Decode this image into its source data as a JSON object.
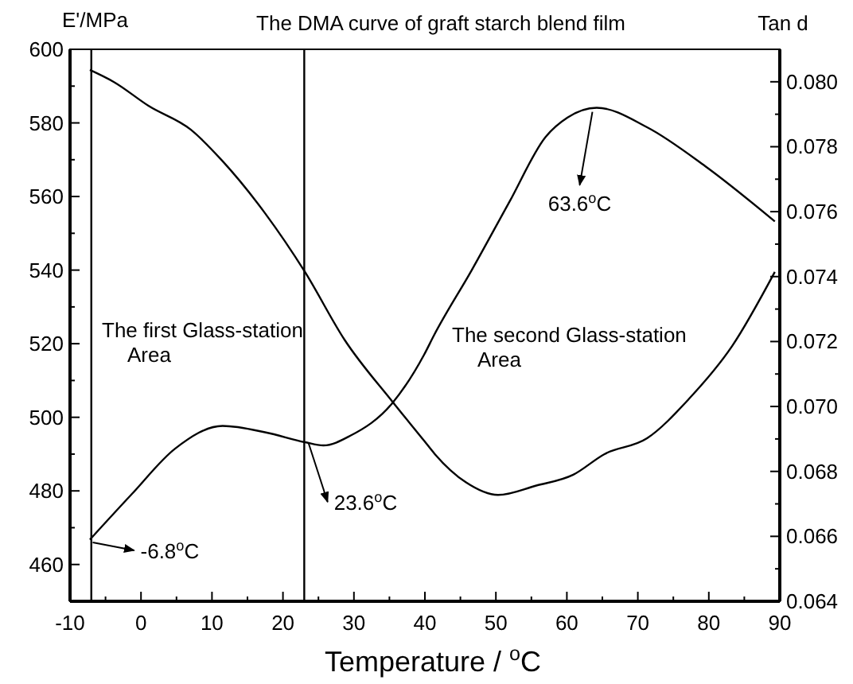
{
  "chart_data": {
    "type": "line",
    "title": "The DMA curve of graft starch blend film",
    "xlabel": "Temperature / $^{o}$C",
    "ylabel": "E'/MPa",
    "y2label": "Tan d",
    "series": [
      {
        "color": "#000000",
        "x": [
          -7.2,
          -3.8,
          1.1,
          7.0,
          11.5,
          17.5,
          23.1,
          28.7,
          35.4,
          39.9,
          41.4,
          45.8,
          50.3,
          55.6,
          60.9,
          65.3,
          71.3,
          77.2,
          83.3,
          89.3
        ],
        "values": [
          594.4,
          591.1,
          584.6,
          578.2,
          569.6,
          555.4,
          539.5,
          521,
          504.3,
          493.6,
          490,
          482.3,
          478.9,
          481.4,
          484.4,
          490,
          494.3,
          505,
          519.4,
          539.5
        ]
      },
      {
        "color": "#000000",
        "axis": "y2",
        "x": [
          -7.2,
          -1.3,
          4.8,
          11.5,
          17.6,
          23.1,
          25.7,
          29.5,
          35.4,
          39.9,
          41.3,
          46.6,
          51.9,
          57,
          60.1,
          64.2,
          71.3,
          79.5,
          89.3
        ],
        "values": [
          0.0659,
          0.0673,
          0.0687,
          0.0694,
          0.0692,
          0.0689,
          0.0688,
          0.0691,
          0.0701,
          0.0716,
          0.0722,
          0.0742,
          0.0763,
          0.0783,
          0.0789,
          0.0792,
          0.0786,
          0.0774,
          0.0757
        ]
      }
    ],
    "xlim": [
      -10,
      90
    ],
    "xticks": [
      -10,
      {
        "value": -5,
        "label": null
      },
      0,
      {
        "value": 5,
        "label": null
      },
      10,
      {
        "value": 15,
        "label": null
      },
      20,
      {
        "value": 25,
        "label": null
      },
      30,
      {
        "value": 35,
        "label": null
      },
      40,
      {
        "value": 45,
        "label": null
      },
      50,
      {
        "value": 55,
        "label": null
      },
      60,
      {
        "value": 65,
        "label": null
      },
      70,
      {
        "value": 75,
        "label": null
      },
      80,
      {
        "value": 85,
        "label": null
      },
      90
    ],
    "ylim": [
      450,
      600
    ],
    "yticks": [
      460,
      {
        "value": 470,
        "label": null
      },
      480,
      {
        "value": 490,
        "label": null
      },
      500,
      {
        "value": 510,
        "label": null
      },
      520,
      {
        "value": 530,
        "label": null
      },
      540,
      {
        "value": 550,
        "label": null
      },
      560,
      {
        "value": 570,
        "label": null
      },
      580,
      {
        "value": 590,
        "label": null
      },
      600
    ],
    "y2lim": [
      0.064,
      0.081
    ],
    "y2ticks": [
      {
        "value": 0.064,
        "label": "0.064"
      },
      {
        "value": 0.065,
        "label": null
      },
      {
        "value": 0.066,
        "label": "0.066"
      },
      {
        "value": 0.067,
        "label": null
      },
      {
        "value": 0.068,
        "label": "0.068"
      },
      {
        "value": 0.069,
        "label": null
      },
      {
        "value": 0.07,
        "label": "0.070"
      },
      {
        "value": 0.071,
        "label": null
      },
      {
        "value": 0.072,
        "label": "0.072"
      },
      {
        "value": 0.073,
        "label": null
      },
      {
        "value": 0.074,
        "label": "0.074"
      },
      {
        "value": 0.075,
        "label": null
      },
      {
        "value": 0.076,
        "label": "0.076"
      },
      {
        "value": 0.077,
        "label": null
      },
      {
        "value": 0.078,
        "label": "0.078"
      },
      {
        "value": 0.079,
        "label": null
      },
      {
        "value": 0.08,
        "label": "0.080"
      }
    ],
    "ref_lines": [
      {
        "axis": "x",
        "value": -7
      },
      {
        "axis": "x",
        "value": 23
      }
    ],
    "annotations": [
      {
        "text": "-6.8$^{o}$C",
        "x": -6.8,
        "y": 466
      },
      {
        "text": "23.6$^{o}$C",
        "x": 23.6,
        "y": 493
      },
      {
        "text": "63.6$^{o}$C",
        "x": 63.6,
        "y": 583
      },
      "The first Glass-station\nArea",
      "The second Glass-station\nArea"
    ],
    "grid": false,
    "marker": "none",
    "line_style": "solid"
  }
}
